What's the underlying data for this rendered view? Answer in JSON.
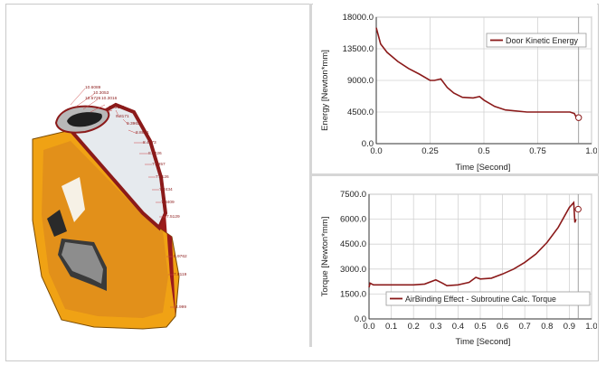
{
  "viewport": {
    "fringe_labels": [
      "10.6089",
      "10.3053",
      "10.5726",
      "10.3016",
      "10.3184",
      "9.8171",
      "9.3963",
      "8.8871",
      "8.4873",
      "8.0226",
      "7.8957",
      "7.7126",
      "7.2434",
      "7.8409",
      "7.5129",
      "5.9762",
      "7.8119",
      "4.999"
    ]
  },
  "energy_chart": {
    "chart_data": {
      "type": "line",
      "title": "",
      "xlabel": "Time [Second]",
      "ylabel": "Energy [Newton*mm]",
      "xlim": [
        0.0,
        1.0
      ],
      "ylim": [
        0.0,
        18000.0
      ],
      "xticks": [
        "0.0",
        "0.25",
        "0.5",
        "0.75",
        "1.0"
      ],
      "yticks": [
        "0.0",
        "4500.0",
        "9000.0",
        "13500.0",
        "18000.0"
      ],
      "grid": true,
      "legend_position": "top-right",
      "series": [
        {
          "name": "Door Kinetic Energy",
          "color": "#8b1a1a",
          "x": [
            0.0,
            0.02,
            0.05,
            0.1,
            0.15,
            0.2,
            0.25,
            0.27,
            0.3,
            0.33,
            0.36,
            0.4,
            0.45,
            0.48,
            0.5,
            0.55,
            0.6,
            0.7,
            0.8,
            0.9,
            0.92,
            0.93
          ],
          "y": [
            16500,
            14200,
            13000,
            11700,
            10700,
            9900,
            9000,
            9000,
            9200,
            8000,
            7200,
            6600,
            6500,
            6700,
            6200,
            5300,
            4800,
            4500,
            4500,
            4500,
            4300,
            3700
          ]
        }
      ],
      "marker": {
        "x": 0.94,
        "y": 3700
      }
    }
  },
  "torque_chart": {
    "chart_data": {
      "type": "line",
      "title": "",
      "xlabel": "Time [Second]",
      "ylabel": "Torque [Newton*mm]",
      "xlim": [
        0.0,
        1.0
      ],
      "ylim": [
        0.0,
        7500.0
      ],
      "xticks": [
        "0.0",
        "0.1",
        "0.2",
        "0.3",
        "0.4",
        "0.5",
        "0.6",
        "0.7",
        "0.8",
        "0.9",
        "1.0"
      ],
      "yticks": [
        "0.0",
        "1500.0",
        "3000.0",
        "4500.0",
        "6000.0",
        "7500.0"
      ],
      "grid": true,
      "legend_position": "bottom-right",
      "series": [
        {
          "name": "AirBinding Effect - Subroutine Calc. Torque",
          "color": "#8b1a1a",
          "x": [
            0.0,
            0.005,
            0.02,
            0.1,
            0.2,
            0.25,
            0.3,
            0.33,
            0.35,
            0.4,
            0.45,
            0.48,
            0.5,
            0.55,
            0.6,
            0.65,
            0.7,
            0.75,
            0.8,
            0.85,
            0.9,
            0.92,
            0.925,
            0.93
          ],
          "y": [
            1900,
            2150,
            2050,
            2050,
            2050,
            2100,
            2350,
            2150,
            2000,
            2050,
            2200,
            2500,
            2400,
            2450,
            2700,
            3000,
            3400,
            3900,
            4600,
            5500,
            6700,
            7000,
            5800,
            6000
          ]
        }
      ],
      "marker": {
        "x": 0.94,
        "y": 6600
      }
    }
  }
}
